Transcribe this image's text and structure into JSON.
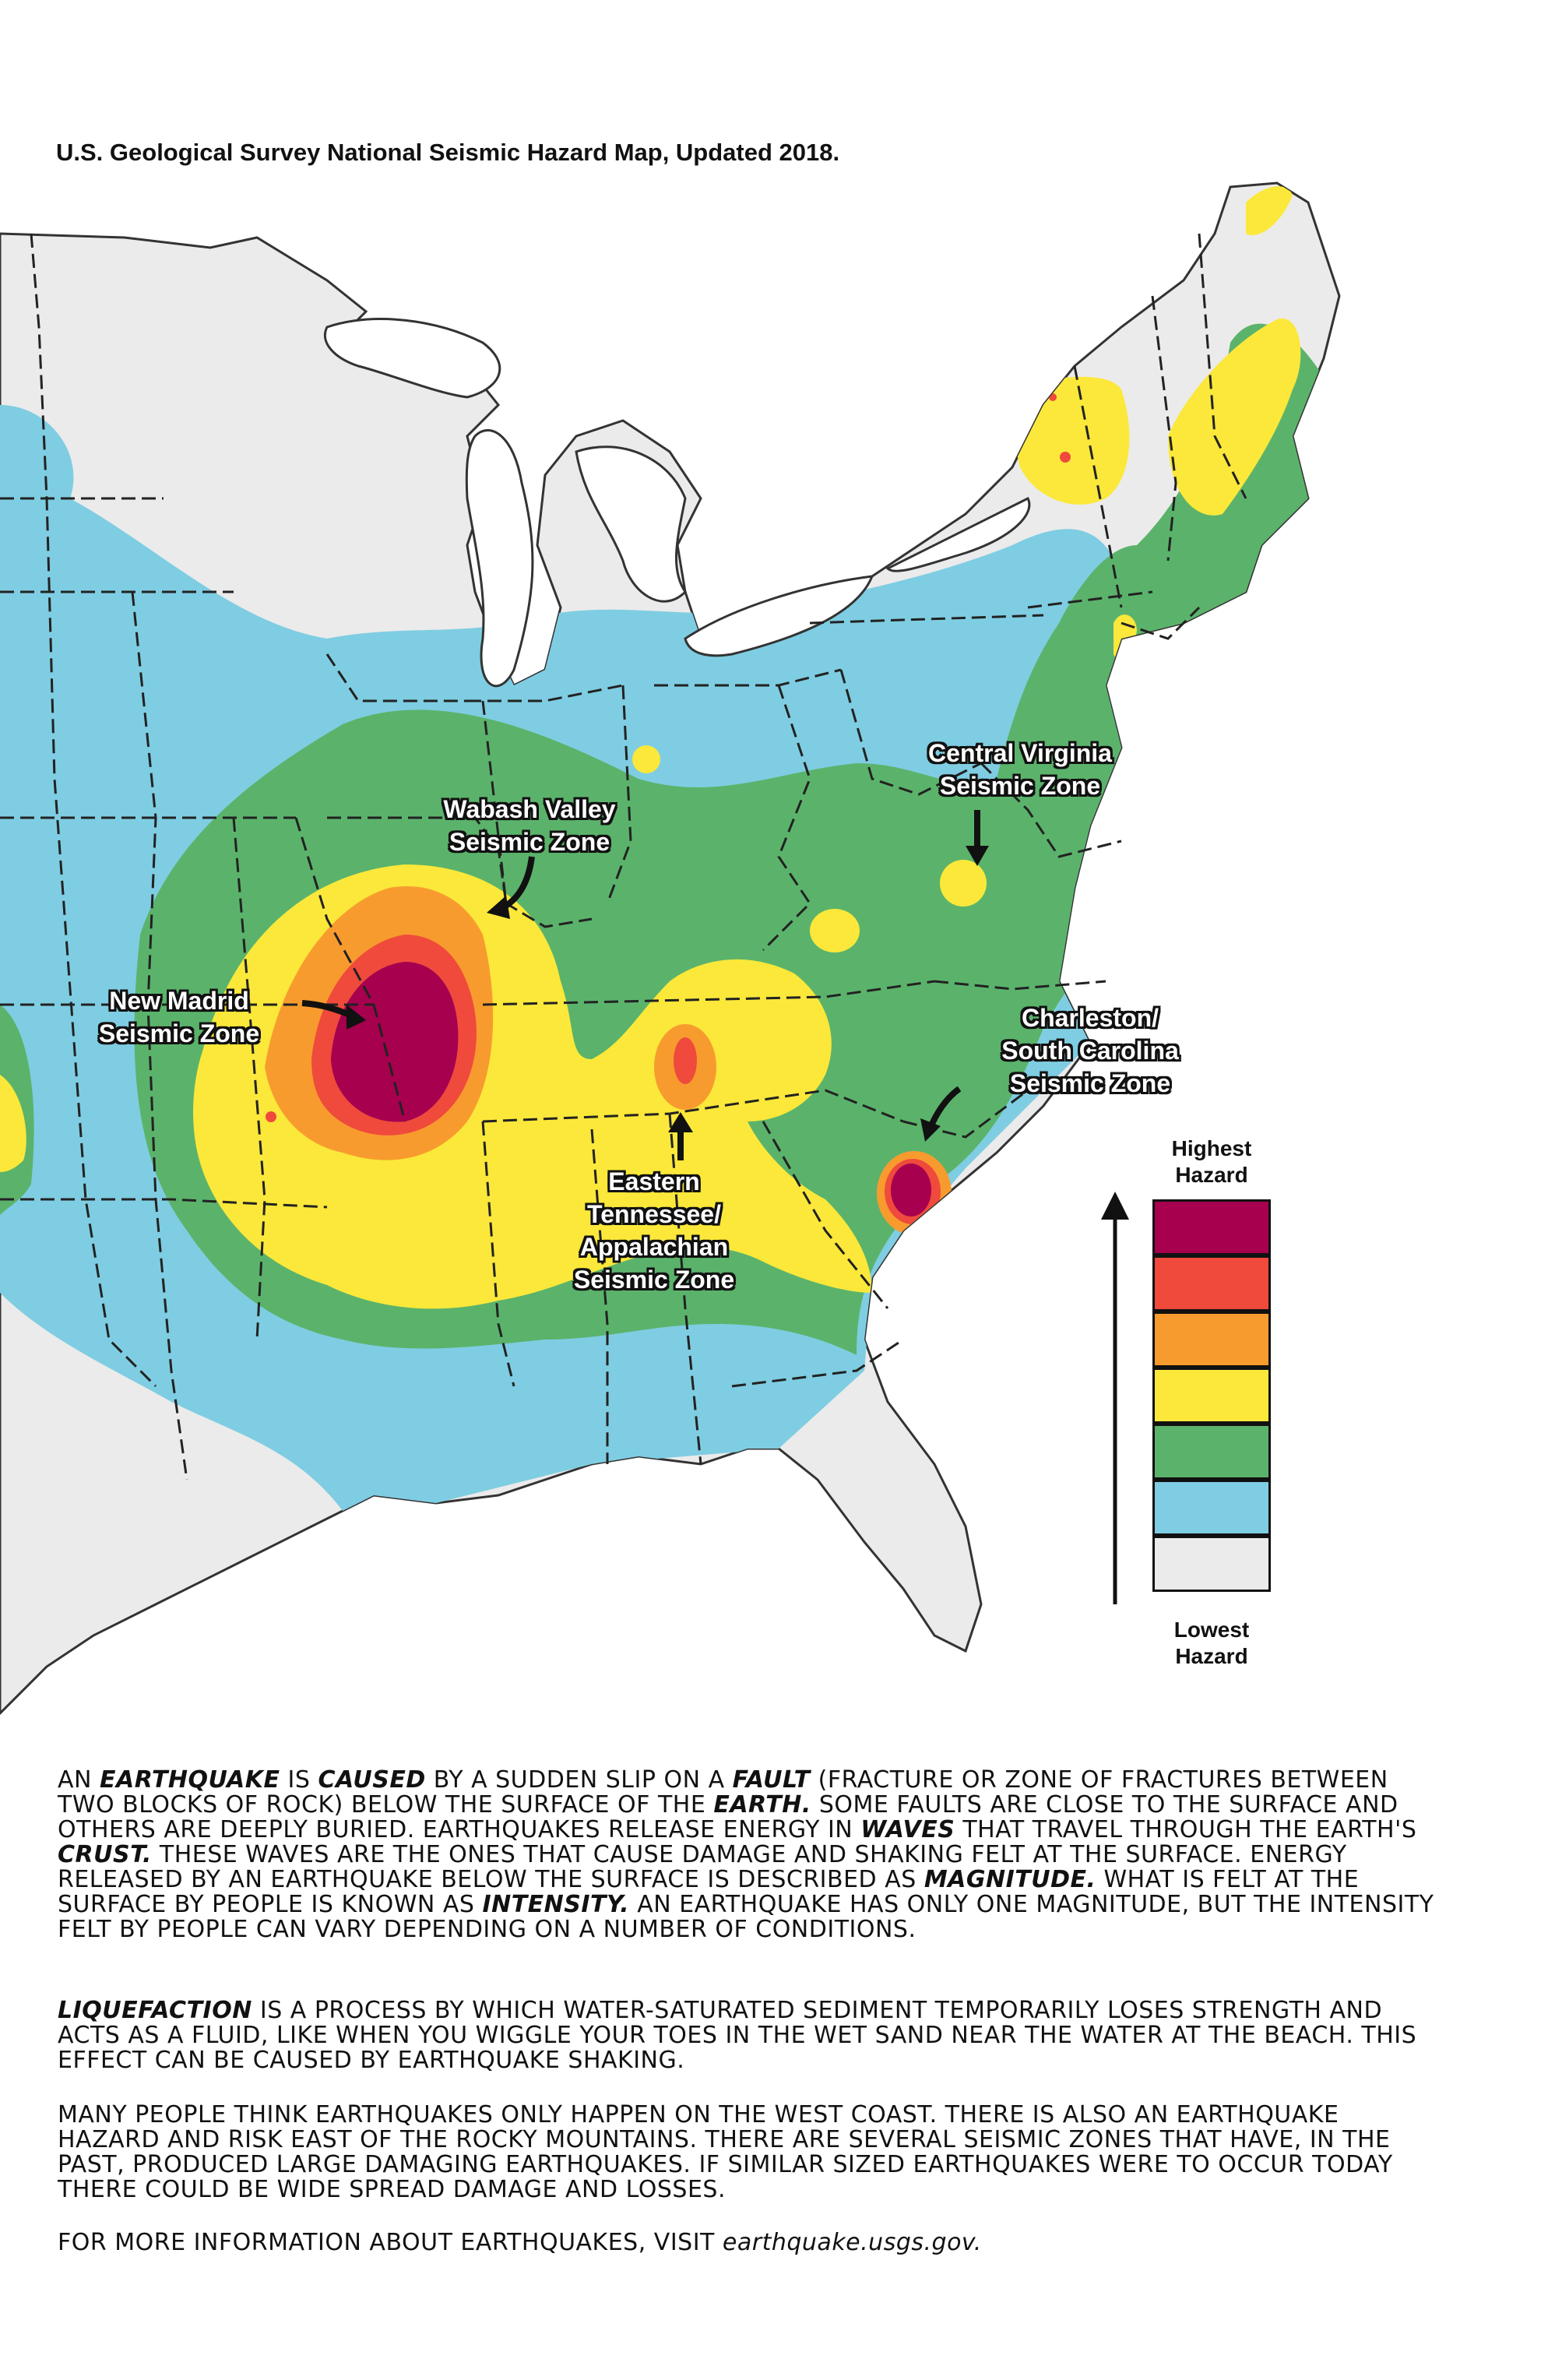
{
  "title": "U.S. Geological Survey National Seismic Hazard Map, Updated 2018.",
  "colors": {
    "highest": "#a6004f",
    "very_high": "#ef4a3c",
    "high": "#f89b2e",
    "moderate": "#fbe83a",
    "low": "#5bb36b",
    "very_low": "#7fcde2",
    "lowest": "#ebebeb"
  },
  "zones": {
    "wabash": [
      "Wabash Valley",
      "Seismic Zone"
    ],
    "virginia": [
      "Central Virginia",
      "Seismic Zone"
    ],
    "madrid": [
      "New Madrid",
      "Seismic Zone"
    ],
    "charleston": [
      "Charleston/",
      "South Carolina",
      "Seismic Zone"
    ],
    "tennessee": [
      "Eastern",
      "Tennessee/",
      "Appalachian",
      "Seismic Zone"
    ]
  },
  "legend": {
    "top": [
      "Highest",
      "Hazard"
    ],
    "bottom": [
      "Lowest",
      "Hazard"
    ],
    "levels": [
      "highest",
      "very_high",
      "high",
      "moderate",
      "low",
      "very_low",
      "lowest"
    ]
  },
  "text": {
    "p1": [
      {
        "t": "An ",
        "k": 0
      },
      {
        "t": "earthquake",
        "k": 1
      },
      {
        "t": " is ",
        "k": 0
      },
      {
        "t": "caused",
        "k": 1
      },
      {
        "t": " by a sudden slip on a ",
        "k": 0
      },
      {
        "t": "fault",
        "k": 1
      },
      {
        "t": " (fracture or zone of fractures between two blocks of rock) below the surface of the ",
        "k": 0
      },
      {
        "t": "earth.",
        "k": 1
      },
      {
        "t": " Some faults are close to the surface and others are deeply buried. Earthquakes release energy in ",
        "k": 0
      },
      {
        "t": "waves",
        "k": 1
      },
      {
        "t": " that travel through the earth's ",
        "k": 0
      },
      {
        "t": "crust.",
        "k": 1
      },
      {
        "t": " These waves are the ones that cause damage and shaking felt at the surface. Energy released by an earthquake below the surface is described as ",
        "k": 0
      },
      {
        "t": "magnitude.",
        "k": 1
      },
      {
        "t": " What is felt at the surface by people is known as ",
        "k": 0
      },
      {
        "t": "intensity.",
        "k": 1
      },
      {
        "t": " An earthquake has only one magnitude, but the intensity felt by people can vary depending on a number of conditions.",
        "k": 0
      }
    ],
    "p2": [
      {
        "t": "Liquefaction",
        "k": 1
      },
      {
        "t": " is a process by which water-saturated sediment temporarily loses strength and acts as a fluid, like when you wiggle your toes in the wet sand near the water at the beach. This effect can be caused by earthquake shaking.",
        "k": 0
      }
    ],
    "p3": "Many people think earthquakes only happen on the west coast. There is also an earthquake hazard and risk east of the Rocky Mountains. There are several seismic zones that have, in the past, produced large damaging earthquakes. If similar sized earthquakes were to occur today there could be wide spread damage and losses.",
    "more_info": "FOR MORE INFORMATION ABOUT EARTHQUAKES, VISIT ",
    "link": "earthquake.usgs.gov."
  }
}
